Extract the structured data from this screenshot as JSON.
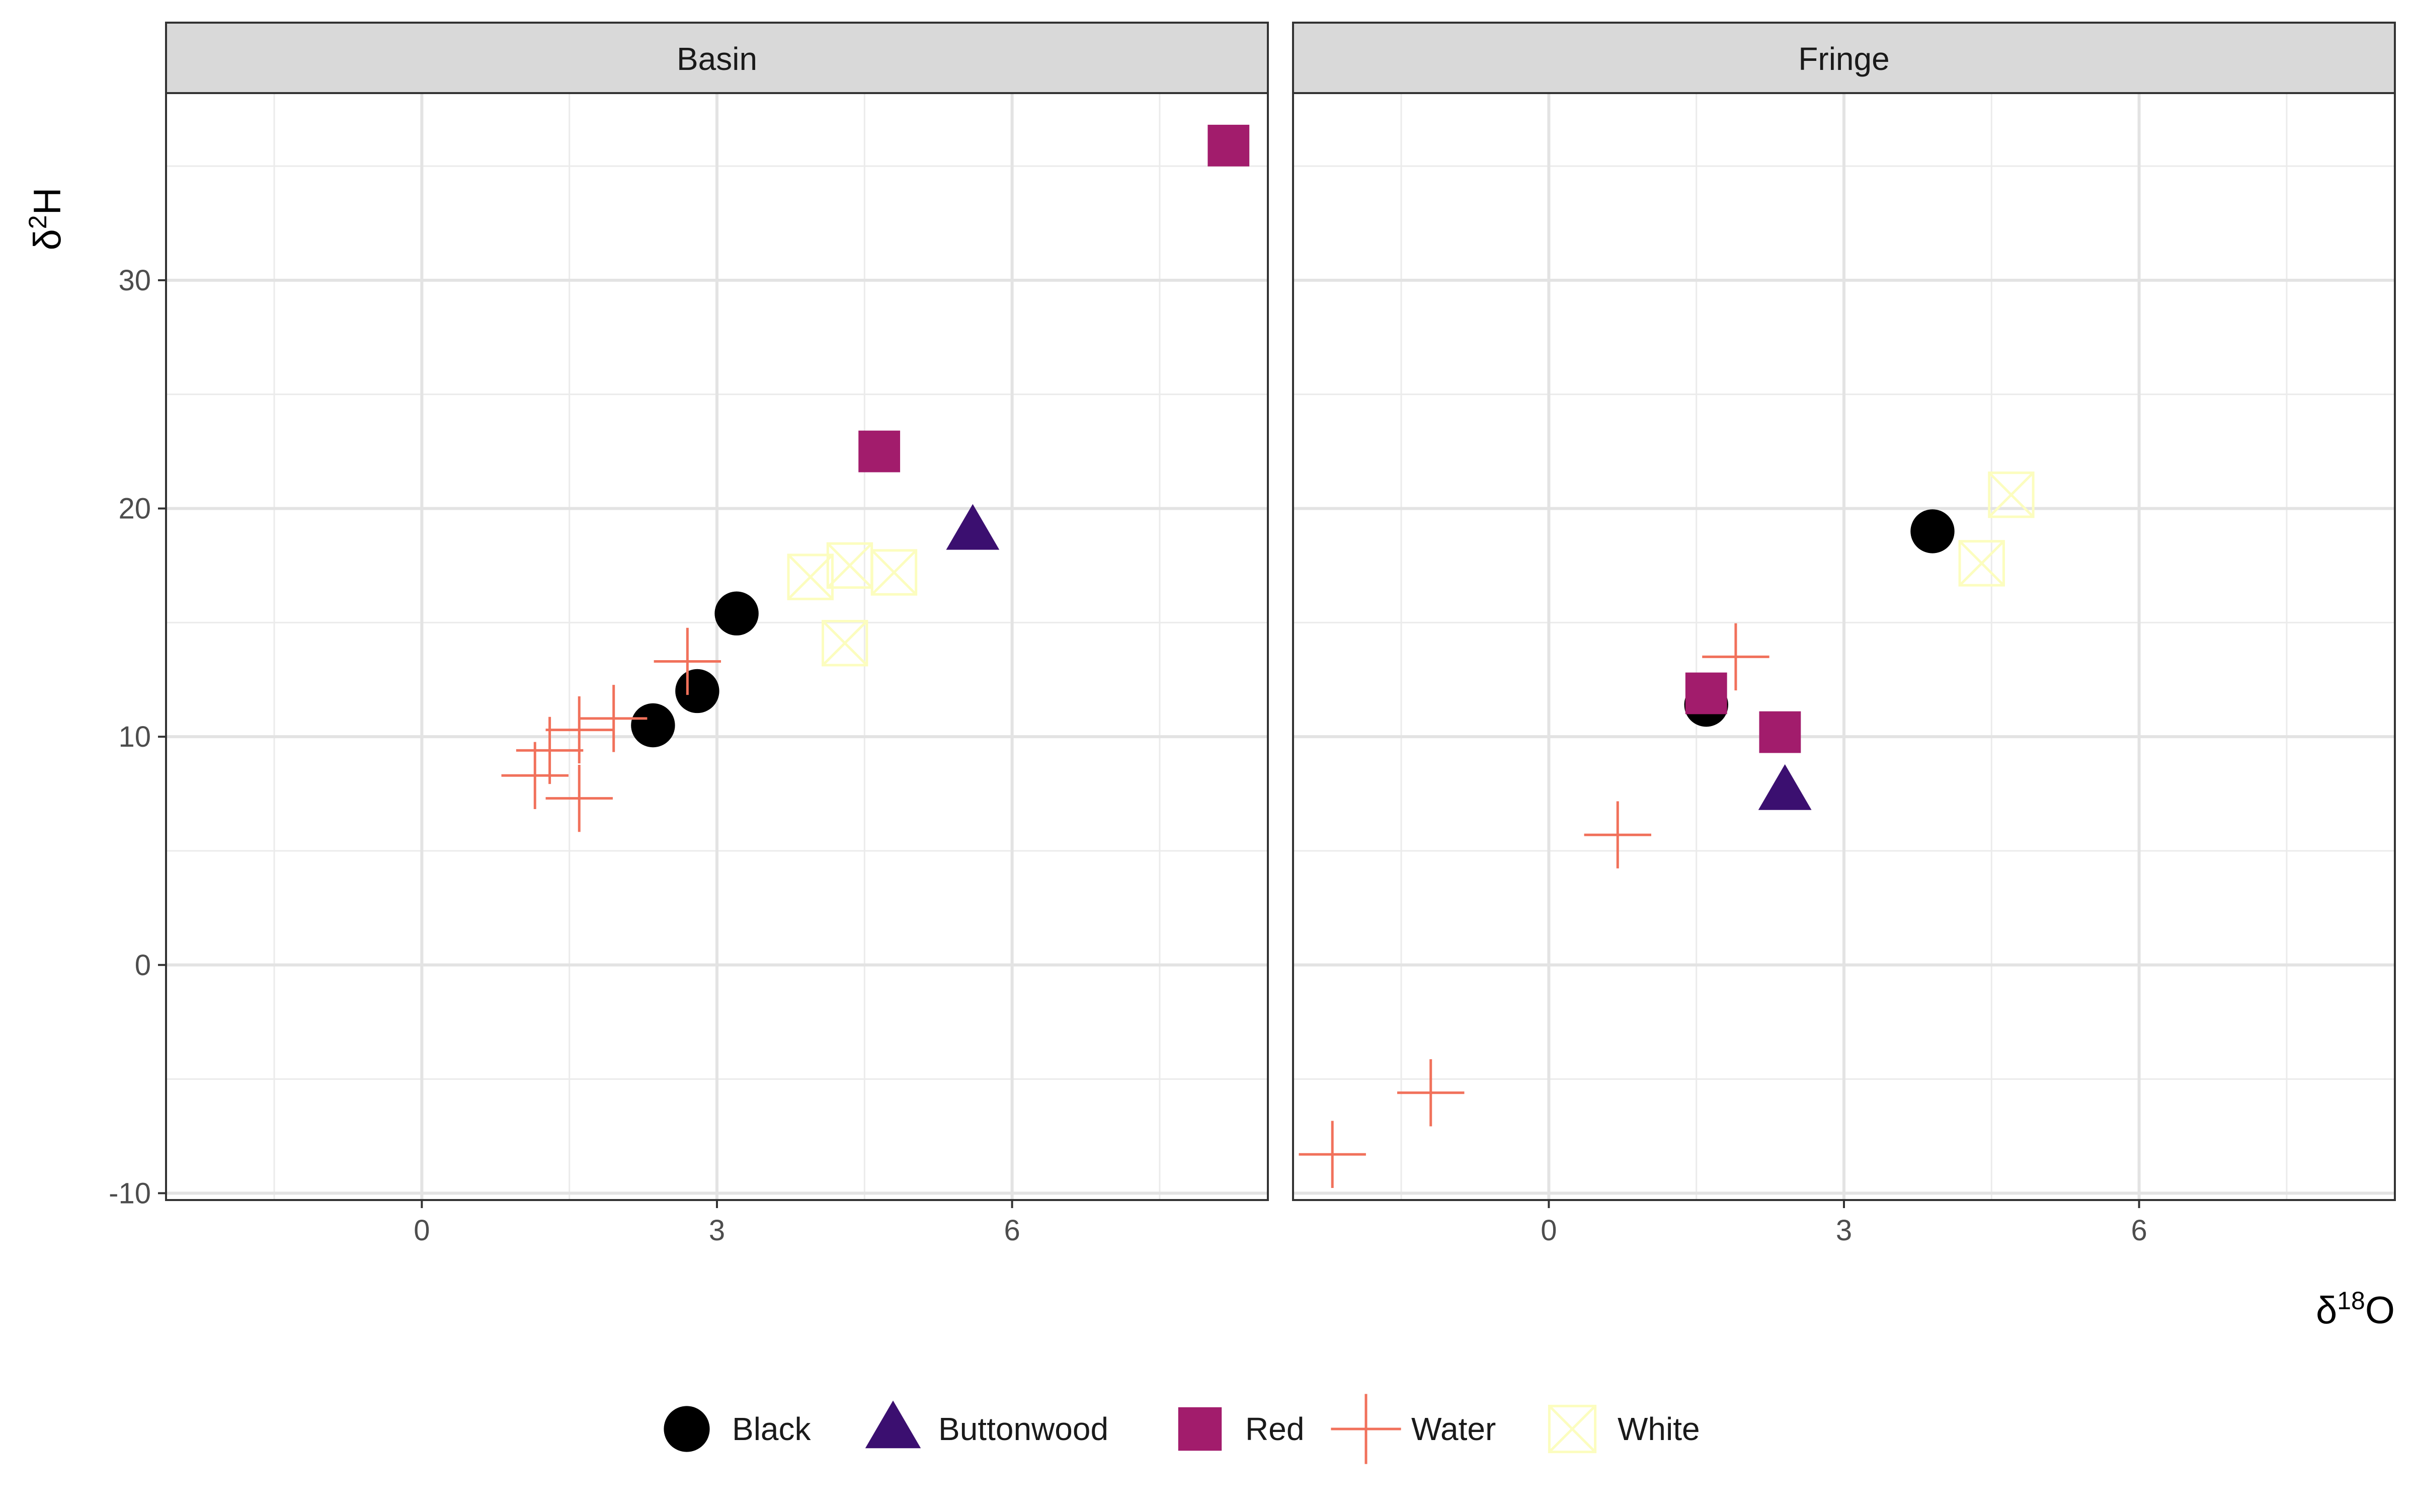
{
  "chart_data": {
    "type": "scatter",
    "facets": [
      "Basin",
      "Fringe"
    ],
    "xlabel": {
      "base": "δ",
      "sup": "18",
      "rest": "O"
    },
    "ylabel": {
      "base": "δ",
      "sup": "2",
      "rest": "H"
    },
    "xlim": [
      -2.6,
      8.6
    ],
    "ylim": [
      -10.3,
      38.2
    ],
    "x_ticks": [
      0,
      3,
      6
    ],
    "y_ticks": [
      -10,
      0,
      10,
      20,
      30
    ],
    "x_tick_labels": [
      "0",
      "3",
      "6"
    ],
    "y_tick_labels": [
      "-10",
      "0",
      "10",
      "20",
      "30"
    ],
    "grid": true,
    "legend_position": "bottom",
    "series": [
      {
        "name": "Black",
        "shape": "circle",
        "color": "#000000",
        "points": {
          "Basin": [
            [
              2.35,
              10.5
            ],
            [
              2.8,
              12.0
            ],
            [
              3.2,
              15.4
            ]
          ],
          "Fringe": [
            [
              1.6,
              11.4
            ],
            [
              3.9,
              19.0
            ]
          ]
        }
      },
      {
        "name": "Buttonwood",
        "shape": "triangle",
        "color": "#3B0F70",
        "points": {
          "Basin": [
            [
              5.6,
              19.0
            ]
          ],
          "Fringe": [
            [
              2.4,
              7.6
            ]
          ]
        }
      },
      {
        "name": "Red",
        "shape": "square",
        "color": "#A21C6C",
        "points": {
          "Basin": [
            [
              4.65,
              22.5
            ],
            [
              8.2,
              35.9
            ]
          ],
          "Fringe": [
            [
              1.6,
              11.9
            ],
            [
              2.35,
              10.2
            ]
          ]
        }
      },
      {
        "name": "Water",
        "shape": "plus",
        "color": "#F1715B",
        "points": {
          "Basin": [
            [
              1.15,
              8.3
            ],
            [
              1.3,
              9.4
            ],
            [
              1.6,
              7.3
            ],
            [
              1.6,
              10.3
            ],
            [
              1.95,
              10.8
            ],
            [
              2.7,
              13.3
            ]
          ],
          "Fringe": [
            [
              -2.2,
              -8.3
            ],
            [
              -1.2,
              -5.6
            ],
            [
              0.7,
              5.7
            ],
            [
              1.9,
              13.5
            ]
          ]
        }
      },
      {
        "name": "White",
        "shape": "boxx",
        "color": "#FCFDBF",
        "points": {
          "Basin": [
            [
              3.95,
              17.0
            ],
            [
              4.3,
              14.1
            ],
            [
              4.35,
              17.5
            ],
            [
              4.8,
              17.2
            ]
          ],
          "Fringe": [
            [
              4.4,
              17.6
            ],
            [
              4.7,
              20.6
            ]
          ]
        }
      }
    ]
  }
}
